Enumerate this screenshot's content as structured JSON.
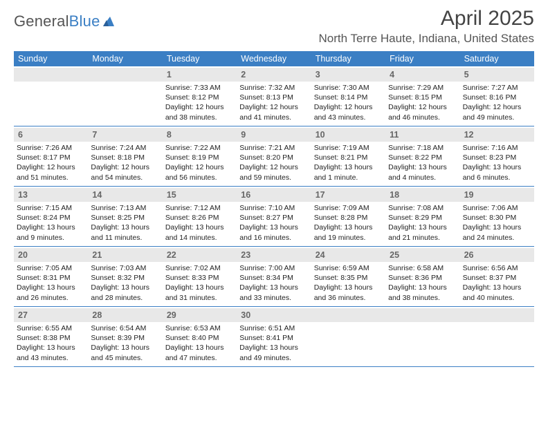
{
  "logo": {
    "word1": "General",
    "word2": "Blue"
  },
  "title": "April 2025",
  "location": "North Terre Haute, Indiana, United States",
  "colors": {
    "accent": "#3b7fc4",
    "header_text": "#ffffff",
    "daynum_bg": "#e8e8e8"
  },
  "weekdays": [
    "Sunday",
    "Monday",
    "Tuesday",
    "Wednesday",
    "Thursday",
    "Friday",
    "Saturday"
  ],
  "grid": {
    "rows": 5,
    "cols": 7,
    "first_weekday_index": 2,
    "days_in_month": 30
  },
  "days": {
    "1": {
      "sunrise": "7:33 AM",
      "sunset": "8:12 PM",
      "daylight": "12 hours and 38 minutes."
    },
    "2": {
      "sunrise": "7:32 AM",
      "sunset": "8:13 PM",
      "daylight": "12 hours and 41 minutes."
    },
    "3": {
      "sunrise": "7:30 AM",
      "sunset": "8:14 PM",
      "daylight": "12 hours and 43 minutes."
    },
    "4": {
      "sunrise": "7:29 AM",
      "sunset": "8:15 PM",
      "daylight": "12 hours and 46 minutes."
    },
    "5": {
      "sunrise": "7:27 AM",
      "sunset": "8:16 PM",
      "daylight": "12 hours and 49 minutes."
    },
    "6": {
      "sunrise": "7:26 AM",
      "sunset": "8:17 PM",
      "daylight": "12 hours and 51 minutes."
    },
    "7": {
      "sunrise": "7:24 AM",
      "sunset": "8:18 PM",
      "daylight": "12 hours and 54 minutes."
    },
    "8": {
      "sunrise": "7:22 AM",
      "sunset": "8:19 PM",
      "daylight": "12 hours and 56 minutes."
    },
    "9": {
      "sunrise": "7:21 AM",
      "sunset": "8:20 PM",
      "daylight": "12 hours and 59 minutes."
    },
    "10": {
      "sunrise": "7:19 AM",
      "sunset": "8:21 PM",
      "daylight": "13 hours and 1 minute."
    },
    "11": {
      "sunrise": "7:18 AM",
      "sunset": "8:22 PM",
      "daylight": "13 hours and 4 minutes."
    },
    "12": {
      "sunrise": "7:16 AM",
      "sunset": "8:23 PM",
      "daylight": "13 hours and 6 minutes."
    },
    "13": {
      "sunrise": "7:15 AM",
      "sunset": "8:24 PM",
      "daylight": "13 hours and 9 minutes."
    },
    "14": {
      "sunrise": "7:13 AM",
      "sunset": "8:25 PM",
      "daylight": "13 hours and 11 minutes."
    },
    "15": {
      "sunrise": "7:12 AM",
      "sunset": "8:26 PM",
      "daylight": "13 hours and 14 minutes."
    },
    "16": {
      "sunrise": "7:10 AM",
      "sunset": "8:27 PM",
      "daylight": "13 hours and 16 minutes."
    },
    "17": {
      "sunrise": "7:09 AM",
      "sunset": "8:28 PM",
      "daylight": "13 hours and 19 minutes."
    },
    "18": {
      "sunrise": "7:08 AM",
      "sunset": "8:29 PM",
      "daylight": "13 hours and 21 minutes."
    },
    "19": {
      "sunrise": "7:06 AM",
      "sunset": "8:30 PM",
      "daylight": "13 hours and 24 minutes."
    },
    "20": {
      "sunrise": "7:05 AM",
      "sunset": "8:31 PM",
      "daylight": "13 hours and 26 minutes."
    },
    "21": {
      "sunrise": "7:03 AM",
      "sunset": "8:32 PM",
      "daylight": "13 hours and 28 minutes."
    },
    "22": {
      "sunrise": "7:02 AM",
      "sunset": "8:33 PM",
      "daylight": "13 hours and 31 minutes."
    },
    "23": {
      "sunrise": "7:00 AM",
      "sunset": "8:34 PM",
      "daylight": "13 hours and 33 minutes."
    },
    "24": {
      "sunrise": "6:59 AM",
      "sunset": "8:35 PM",
      "daylight": "13 hours and 36 minutes."
    },
    "25": {
      "sunrise": "6:58 AM",
      "sunset": "8:36 PM",
      "daylight": "13 hours and 38 minutes."
    },
    "26": {
      "sunrise": "6:56 AM",
      "sunset": "8:37 PM",
      "daylight": "13 hours and 40 minutes."
    },
    "27": {
      "sunrise": "6:55 AM",
      "sunset": "8:38 PM",
      "daylight": "13 hours and 43 minutes."
    },
    "28": {
      "sunrise": "6:54 AM",
      "sunset": "8:39 PM",
      "daylight": "13 hours and 45 minutes."
    },
    "29": {
      "sunrise": "6:53 AM",
      "sunset": "8:40 PM",
      "daylight": "13 hours and 47 minutes."
    },
    "30": {
      "sunrise": "6:51 AM",
      "sunset": "8:41 PM",
      "daylight": "13 hours and 49 minutes."
    }
  },
  "labels": {
    "sunrise": "Sunrise:",
    "sunset": "Sunset:",
    "daylight": "Daylight:"
  }
}
